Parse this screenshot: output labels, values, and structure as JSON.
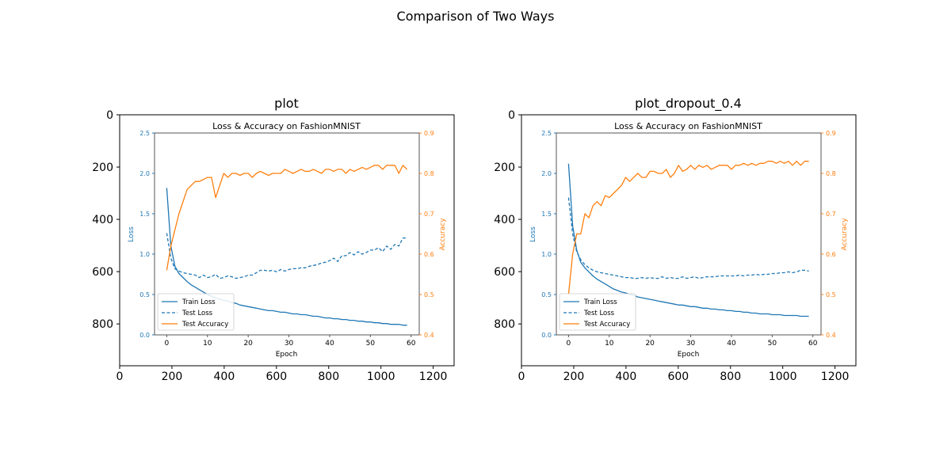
{
  "figure": {
    "suptitle": "Comparison of Two Ways"
  },
  "colors": {
    "loss": "#1f77b4",
    "accuracy": "#ff7f0e",
    "axis": "#000000",
    "inner_frame": "#555555",
    "background": "#ffffff"
  },
  "chart_data": [
    {
      "type": "line",
      "panel_title": "plot",
      "outer_axes": {
        "x_ticks": [
          0,
          200,
          400,
          600,
          800,
          1000,
          1200
        ],
        "y_ticks": [
          0,
          200,
          400,
          600,
          800
        ],
        "xlim": [
          0,
          1280
        ],
        "ylim_inverted": [
          960,
          0
        ]
      },
      "inner_chart": {
        "title": "Loss & Accuracy on FashionMNIST",
        "xlabel": "Epoch",
        "ylabel_left": "Loss",
        "ylabel_right": "Accuracy",
        "x_ticks": [
          0,
          10,
          20,
          30,
          40,
          50,
          60
        ],
        "xlim": [
          -3,
          62
        ],
        "y_left_ticks": [
          "0.0",
          "0.5",
          "1.0",
          "1.5",
          "2.0",
          "2.5"
        ],
        "y_left_lim": [
          0,
          2.5
        ],
        "y_right_ticks": [
          "0.4",
          "0.5",
          "0.6",
          "0.7",
          "0.8",
          "0.9"
        ],
        "y_right_lim": [
          0.4,
          0.9
        ],
        "legend_position": "lower left",
        "legend": [
          "Train Loss",
          "Test Loss",
          "Test Accuracy"
        ],
        "x": [
          0,
          1,
          2,
          3,
          4,
          5,
          6,
          7,
          8,
          9,
          10,
          11,
          12,
          13,
          14,
          15,
          16,
          17,
          18,
          19,
          20,
          21,
          22,
          23,
          24,
          25,
          26,
          27,
          28,
          29,
          30,
          31,
          32,
          33,
          34,
          35,
          36,
          37,
          38,
          39,
          40,
          41,
          42,
          43,
          44,
          45,
          46,
          47,
          48,
          49,
          50,
          51,
          52,
          53,
          54,
          55,
          56,
          57,
          58,
          59
        ],
        "series": [
          {
            "name": "Train Loss",
            "axis": "left",
            "style": "solid",
            "values": [
              1.82,
              1.1,
              0.85,
              0.76,
              0.71,
              0.66,
              0.62,
              0.59,
              0.56,
              0.53,
              0.5,
              0.48,
              0.46,
              0.44,
              0.43,
              0.42,
              0.4,
              0.39,
              0.37,
              0.36,
              0.35,
              0.34,
              0.33,
              0.32,
              0.31,
              0.3,
              0.3,
              0.29,
              0.28,
              0.28,
              0.27,
              0.26,
              0.26,
              0.25,
              0.25,
              0.24,
              0.23,
              0.23,
              0.22,
              0.21,
              0.21,
              0.2,
              0.2,
              0.19,
              0.19,
              0.18,
              0.18,
              0.17,
              0.17,
              0.16,
              0.16,
              0.15,
              0.15,
              0.14,
              0.14,
              0.13,
              0.13,
              0.13,
              0.12,
              0.12
            ]
          },
          {
            "name": "Test Loss",
            "axis": "left",
            "style": "dashed",
            "values": [
              1.26,
              0.95,
              0.82,
              0.79,
              0.77,
              0.76,
              0.75,
              0.74,
              0.71,
              0.74,
              0.71,
              0.72,
              0.75,
              0.7,
              0.71,
              0.73,
              0.72,
              0.7,
              0.71,
              0.72,
              0.74,
              0.74,
              0.77,
              0.8,
              0.8,
              0.79,
              0.8,
              0.78,
              0.81,
              0.79,
              0.81,
              0.82,
              0.82,
              0.83,
              0.83,
              0.85,
              0.86,
              0.87,
              0.89,
              0.9,
              0.92,
              0.95,
              0.91,
              0.98,
              0.98,
              1.02,
              0.99,
              1.03,
              1.0,
              1.02,
              1.05,
              1.05,
              1.08,
              1.03,
              1.1,
              1.06,
              1.12,
              1.1,
              1.2,
              1.2
            ]
          },
          {
            "name": "Test Accuracy",
            "axis": "right",
            "style": "solid",
            "values": [
              0.56,
              0.62,
              0.66,
              0.7,
              0.73,
              0.76,
              0.77,
              0.78,
              0.78,
              0.785,
              0.79,
              0.79,
              0.74,
              0.77,
              0.8,
              0.79,
              0.8,
              0.8,
              0.795,
              0.8,
              0.8,
              0.79,
              0.8,
              0.805,
              0.8,
              0.795,
              0.8,
              0.8,
              0.8,
              0.81,
              0.805,
              0.8,
              0.805,
              0.81,
              0.805,
              0.805,
              0.81,
              0.805,
              0.8,
              0.81,
              0.81,
              0.805,
              0.81,
              0.81,
              0.8,
              0.81,
              0.805,
              0.81,
              0.815,
              0.81,
              0.815,
              0.82,
              0.82,
              0.81,
              0.82,
              0.82,
              0.82,
              0.8,
              0.82,
              0.81
            ]
          }
        ]
      }
    },
    {
      "type": "line",
      "panel_title": "plot_dropout_0.4",
      "outer_axes": {
        "x_ticks": [
          0,
          200,
          400,
          600,
          800,
          1000,
          1200
        ],
        "y_ticks": [
          0,
          200,
          400,
          600,
          800
        ],
        "xlim": [
          0,
          1280
        ],
        "ylim_inverted": [
          960,
          0
        ]
      },
      "inner_chart": {
        "title": "Loss & Accuracy on FashionMNIST",
        "xlabel": "Epoch",
        "ylabel_left": "Loss",
        "ylabel_right": "Accuracy",
        "x_ticks": [
          0,
          10,
          20,
          30,
          40,
          50,
          60
        ],
        "xlim": [
          -3,
          62
        ],
        "y_left_ticks": [
          "0.0",
          "0.5",
          "1.0",
          "1.5",
          "2.0",
          "2.5"
        ],
        "y_left_lim": [
          0,
          2.5
        ],
        "y_right_ticks": [
          "0.4",
          "0.5",
          "0.6",
          "0.7",
          "0.8",
          "0.9"
        ],
        "y_right_lim": [
          0.4,
          0.9
        ],
        "legend_position": "lower left",
        "legend": [
          "Train Loss",
          "Test Loss",
          "Test Accuracy"
        ],
        "x": [
          0,
          1,
          2,
          3,
          4,
          5,
          6,
          7,
          8,
          9,
          10,
          11,
          12,
          13,
          14,
          15,
          16,
          17,
          18,
          19,
          20,
          21,
          22,
          23,
          24,
          25,
          26,
          27,
          28,
          29,
          30,
          31,
          32,
          33,
          34,
          35,
          36,
          37,
          38,
          39,
          40,
          41,
          42,
          43,
          44,
          45,
          46,
          47,
          48,
          49,
          50,
          51,
          52,
          53,
          54,
          55,
          56,
          57,
          58,
          59
        ],
        "series": [
          {
            "name": "Train Loss",
            "axis": "left",
            "style": "solid",
            "values": [
              2.12,
              1.35,
              1.05,
              0.9,
              0.83,
              0.78,
              0.73,
              0.69,
              0.66,
              0.63,
              0.6,
              0.57,
              0.55,
              0.53,
              0.52,
              0.5,
              0.49,
              0.47,
              0.46,
              0.45,
              0.44,
              0.43,
              0.42,
              0.41,
              0.4,
              0.39,
              0.38,
              0.37,
              0.37,
              0.36,
              0.35,
              0.35,
              0.34,
              0.33,
              0.33,
              0.32,
              0.32,
              0.31,
              0.31,
              0.3,
              0.3,
              0.29,
              0.29,
              0.28,
              0.28,
              0.27,
              0.27,
              0.26,
              0.26,
              0.26,
              0.25,
              0.25,
              0.25,
              0.24,
              0.24,
              0.24,
              0.24,
              0.23,
              0.23,
              0.23
            ]
          },
          {
            "name": "Test Loss",
            "axis": "left",
            "style": "dashed",
            "values": [
              1.7,
              1.25,
              1.03,
              0.93,
              0.87,
              0.83,
              0.8,
              0.78,
              0.77,
              0.76,
              0.75,
              0.74,
              0.73,
              0.72,
              0.71,
              0.71,
              0.7,
              0.7,
              0.71,
              0.7,
              0.71,
              0.7,
              0.7,
              0.72,
              0.7,
              0.71,
              0.7,
              0.7,
              0.72,
              0.7,
              0.71,
              0.72,
              0.7,
              0.71,
              0.72,
              0.72,
              0.72,
              0.73,
              0.73,
              0.73,
              0.73,
              0.73,
              0.74,
              0.73,
              0.74,
              0.74,
              0.75,
              0.74,
              0.75,
              0.75,
              0.76,
              0.76,
              0.77,
              0.77,
              0.78,
              0.77,
              0.78,
              0.8,
              0.8,
              0.79
            ]
          },
          {
            "name": "Test Accuracy",
            "axis": "right",
            "style": "solid",
            "values": [
              0.5,
              0.6,
              0.65,
              0.65,
              0.7,
              0.69,
              0.72,
              0.73,
              0.72,
              0.745,
              0.74,
              0.75,
              0.76,
              0.77,
              0.79,
              0.78,
              0.79,
              0.8,
              0.79,
              0.79,
              0.805,
              0.805,
              0.8,
              0.8,
              0.81,
              0.79,
              0.8,
              0.82,
              0.805,
              0.81,
              0.82,
              0.81,
              0.82,
              0.815,
              0.82,
              0.81,
              0.815,
              0.82,
              0.82,
              0.82,
              0.81,
              0.82,
              0.82,
              0.825,
              0.82,
              0.825,
              0.82,
              0.825,
              0.825,
              0.83,
              0.83,
              0.825,
              0.83,
              0.825,
              0.83,
              0.82,
              0.83,
              0.82,
              0.83,
              0.83
            ]
          }
        ]
      }
    }
  ]
}
